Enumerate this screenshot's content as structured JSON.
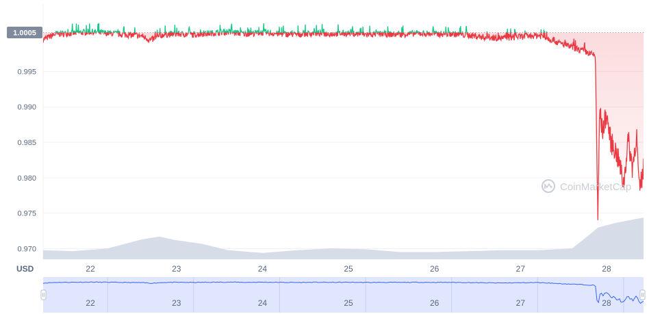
{
  "chart_data": {
    "type": "line",
    "title": "",
    "currency_label": "USD",
    "current_price_label": "1.0005",
    "reference_price": 1.0005,
    "ylim": [
      0.9685,
      1.0045
    ],
    "y_ticks": [
      0.97,
      0.975,
      0.98,
      0.985,
      0.99,
      0.995
    ],
    "y_tick_labels": [
      "0.970",
      "0.975",
      "0.980",
      "0.985",
      "0.990",
      "0.995"
    ],
    "xlim": [
      21.45,
      28.43
    ],
    "x_ticks": [
      22,
      23,
      24,
      25,
      26,
      27,
      28
    ],
    "x_tick_labels": [
      "22",
      "23",
      "24",
      "25",
      "26",
      "27",
      "28"
    ],
    "grid": true,
    "colors": {
      "above": "#16c784",
      "below": "#ea3943",
      "volume": "#cfd6e4",
      "navigator_line": "#3861fb",
      "navigator_fill": "#dfe6fd",
      "badge": "#808a9d",
      "grid": "#eff2f5"
    },
    "series": [
      {
        "type": "line",
        "x": [
          21.45,
          21.6,
          21.8,
          22.0,
          22.2,
          22.4,
          22.6,
          22.7,
          22.85,
          23.0,
          23.2,
          23.4,
          23.6,
          23.8,
          24.0,
          24.2,
          24.4,
          24.6,
          24.8,
          25.0,
          25.2,
          25.4,
          25.6,
          25.8,
          26.0,
          26.2,
          26.4,
          26.6,
          26.8,
          27.0,
          27.2,
          27.3,
          27.45,
          27.6,
          27.75,
          27.87,
          27.9,
          27.92,
          27.95,
          28.0,
          28.05,
          28.1,
          28.15,
          28.2,
          28.25,
          28.3,
          28.35,
          28.38,
          28.43
        ],
        "values": [
          0.9995,
          1.0003,
          1.0004,
          1.0006,
          1.0004,
          1.0002,
          1.0,
          0.9994,
          1.0002,
          1.0003,
          1.0002,
          1.0004,
          1.0006,
          1.0003,
          1.0005,
          1.0003,
          1.0002,
          1.0004,
          1.0003,
          1.0004,
          1.0002,
          1.0003,
          1.0002,
          1.0004,
          1.0003,
          1.0003,
          1.0001,
          0.9998,
          0.9997,
          0.9999,
          1.0001,
          0.9998,
          0.999,
          0.9984,
          0.9978,
          0.9972,
          0.9736,
          0.9898,
          0.9865,
          0.989,
          0.985,
          0.984,
          0.982,
          0.979,
          0.9855,
          0.9815,
          0.986,
          0.978,
          0.9812
        ]
      },
      {
        "type": "volume",
        "x": [
          21.45,
          21.8,
          22.2,
          22.6,
          22.8,
          23.0,
          23.3,
          23.6,
          24.0,
          24.4,
          24.8,
          25.2,
          25.6,
          26.0,
          26.4,
          26.8,
          27.2,
          27.6,
          27.8,
          27.9,
          28.1,
          28.43
        ],
        "values": [
          0.1,
          0.09,
          0.12,
          0.22,
          0.25,
          0.21,
          0.17,
          0.1,
          0.07,
          0.1,
          0.12,
          0.11,
          0.08,
          0.08,
          0.09,
          0.1,
          0.1,
          0.12,
          0.27,
          0.35,
          0.4,
          0.46
        ]
      }
    ]
  },
  "watermark": {
    "text": "CoinMarketCap"
  }
}
